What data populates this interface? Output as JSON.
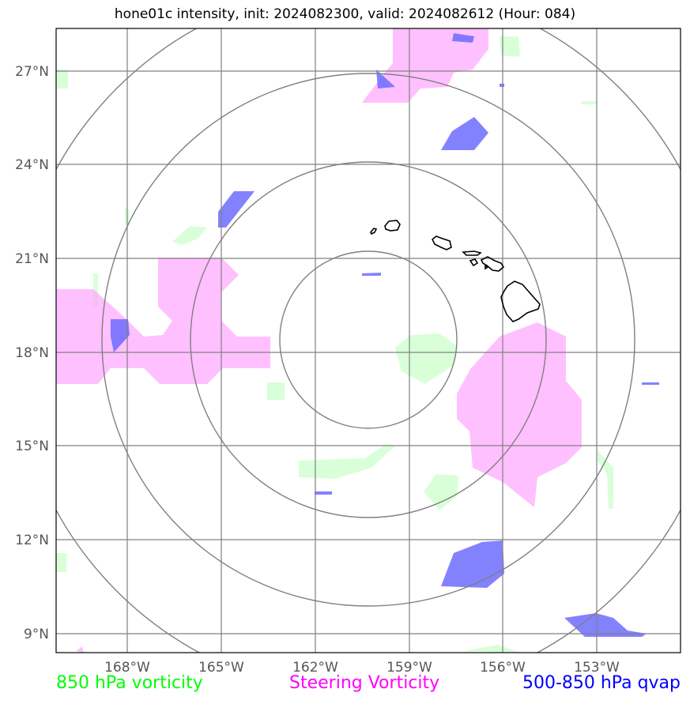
{
  "title": "hone01c intensity, init: 2024082300, valid: 2024082612 (Hour: 084)",
  "map": {
    "lat_labels": [
      "27°N",
      "24°N",
      "21°N",
      "18°N",
      "15°N",
      "12°N",
      "9°N"
    ],
    "lon_labels": [
      "168°W",
      "165°W",
      "162°W",
      "159°W",
      "156°W",
      "153°W"
    ],
    "range_ring_count": 4,
    "colors": {
      "vorticity_850": "#ccffcc",
      "steering_vorticity": "#ff99ff",
      "qvap": "#6666ff",
      "grid": "#808080",
      "coastline": "#000000"
    }
  },
  "legend": {
    "vort850": {
      "label": "850 hPa vorticity",
      "color": "#00ff00"
    },
    "steering": {
      "label": "Steering Vorticity",
      "color": "#ff00ff"
    },
    "qvap": {
      "label": "500-850 hPa qvap",
      "color": "#0000ff"
    }
  }
}
